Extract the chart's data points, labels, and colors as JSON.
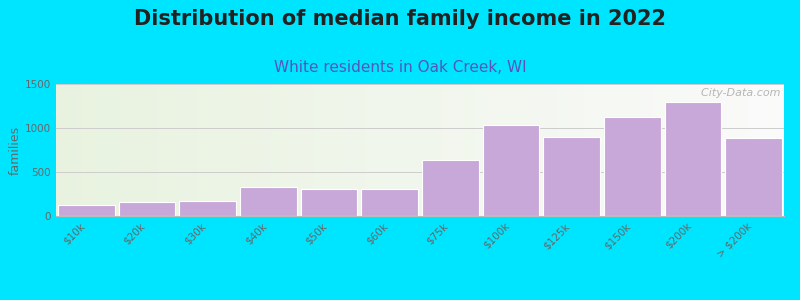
{
  "title": "Distribution of median family income in 2022",
  "subtitle": "White residents in Oak Creek, WI",
  "ylabel": "families",
  "categories": [
    "$10k",
    "$20k",
    "$30k",
    "$40k",
    "$50k",
    "$60k",
    "$75k",
    "$100k",
    "$125k",
    "$150k",
    "$200k",
    "> $200k"
  ],
  "values": [
    120,
    160,
    175,
    330,
    310,
    310,
    640,
    1030,
    900,
    1130,
    1300,
    890
  ],
  "bar_color": "#c8a8d8",
  "bar_edge_color": "#ffffff",
  "background_color": "#00e5ff",
  "title_fontsize": 15,
  "subtitle_fontsize": 11,
  "subtitle_color": "#5555bb",
  "ylabel_fontsize": 9,
  "tick_fontsize": 7.5,
  "tick_color": "#666666",
  "ylim": [
    0,
    1500
  ],
  "yticks": [
    0,
    500,
    1000,
    1500
  ],
  "watermark": "  City-Data.com",
  "watermark_color": "#aaaaaa",
  "grid_color": "#cccccc"
}
